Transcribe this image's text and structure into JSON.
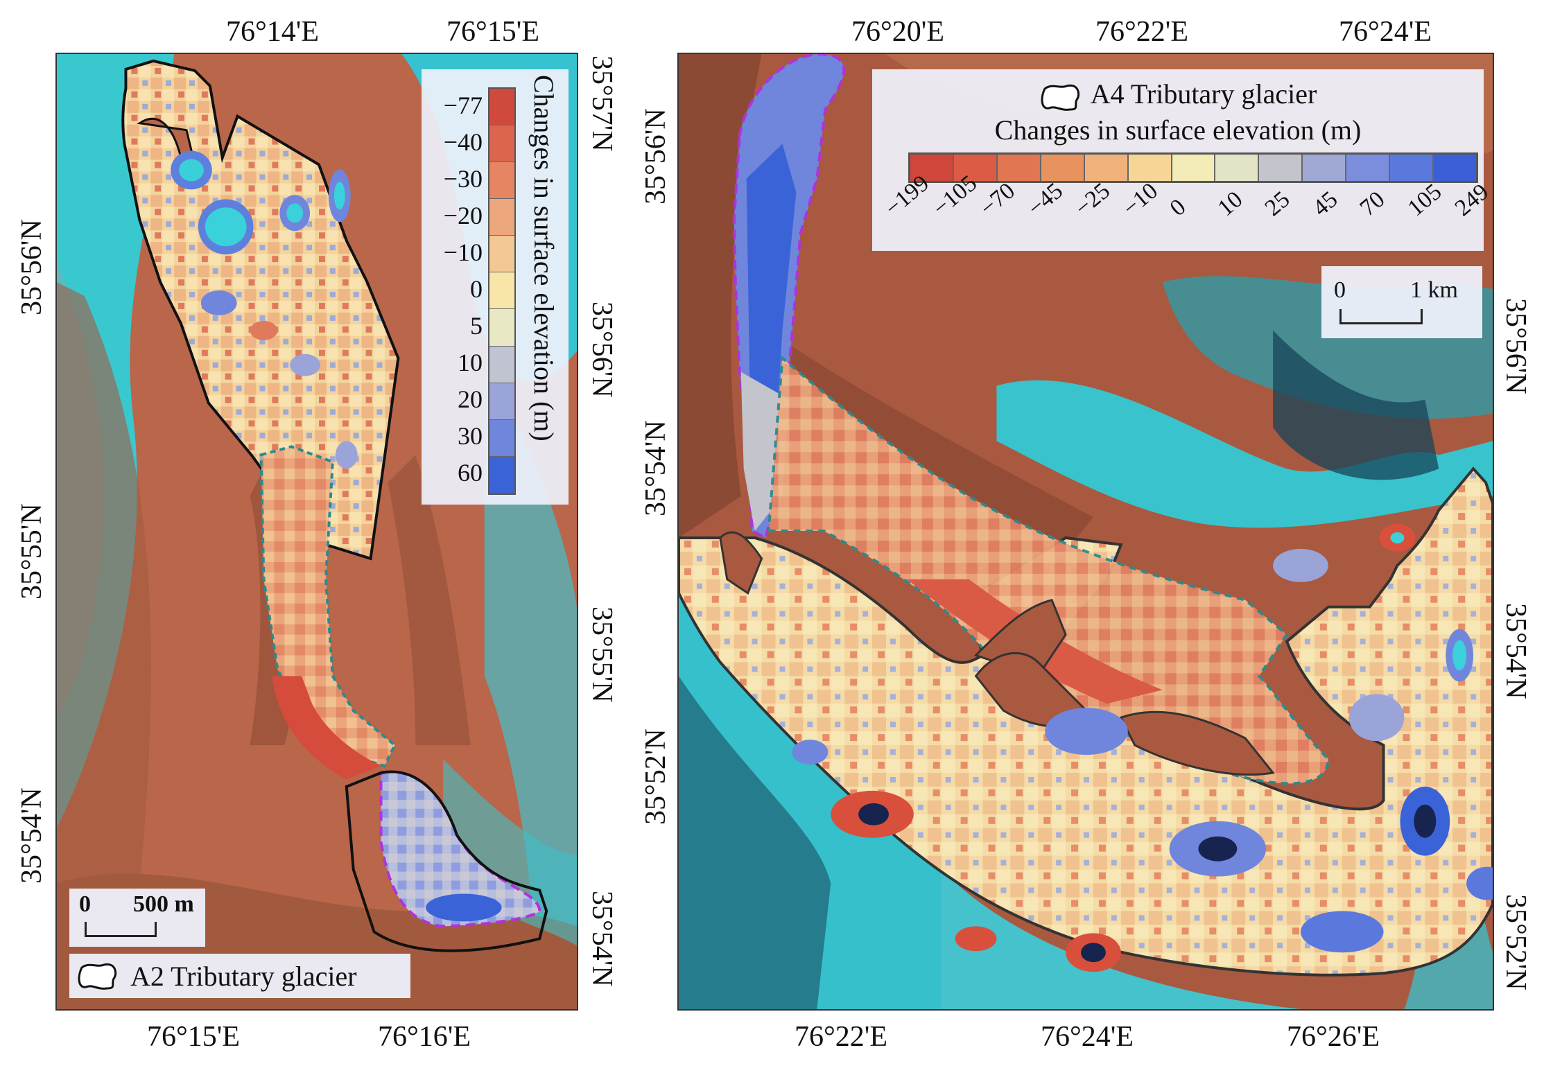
{
  "panel_a2": {
    "top_lon_labels": [
      "76°14'E",
      "76°15'E"
    ],
    "bottom_lon_labels": [
      "76°15'E",
      "76°16'E"
    ],
    "left_lat_labels": [
      "35°56'N",
      "35°55'N",
      "35°54'N"
    ],
    "right_lat_labels": [
      "35°57'N",
      "35°56'N",
      "35°55'N",
      "35°54'N"
    ],
    "legend": {
      "title": "Changes in surface elevation (m)",
      "ticks": [
        "−77",
        "−40",
        "−30",
        "−20",
        "−10",
        "0",
        "5",
        "10",
        "20",
        "30",
        "60"
      ],
      "colors": [
        "#cf4a3c",
        "#dc6550",
        "#e58561",
        "#eda77c",
        "#f3c894",
        "#f8e6a8",
        "#e8e8c4",
        "#c0c4d2",
        "#9aa4d8",
        "#6f86dc",
        "#3b63d8"
      ]
    },
    "scale_bar": {
      "zero": "0",
      "label": "500 m"
    },
    "outline_legend": "A2 Tributary glacier"
  },
  "panel_a4": {
    "top_lon_labels": [
      "76°20'E",
      "76°22'E",
      "76°24'E"
    ],
    "bottom_lon_labels": [
      "76°22'E",
      "76°24'E",
      "76°26'E"
    ],
    "left_lat_labels": [
      "35°56'N",
      "35°54'N",
      "35°52'N"
    ],
    "right_lat_labels": [
      "35°56'N",
      "35°54'N",
      "35°52'N"
    ],
    "legend": {
      "outline_label": "A4 Tributary glacier",
      "title": "Changes in surface elevation (m)",
      "ticks": [
        "−199",
        "−105",
        "−70",
        "−45",
        "−25",
        "−10",
        "0",
        "10",
        "25",
        "45",
        "70",
        "105",
        "249"
      ],
      "colors": [
        "#d0463a",
        "#dc5b45",
        "#e27552",
        "#e8935f",
        "#f0b27a",
        "#f6d596",
        "#f3ecb6",
        "#e3e3c8",
        "#c4c4cc",
        "#a0a8d6",
        "#7b8ede",
        "#5b78dc",
        "#3a5fd6"
      ]
    },
    "scale_bar": {
      "zero": "0",
      "label": "1 km"
    }
  }
}
